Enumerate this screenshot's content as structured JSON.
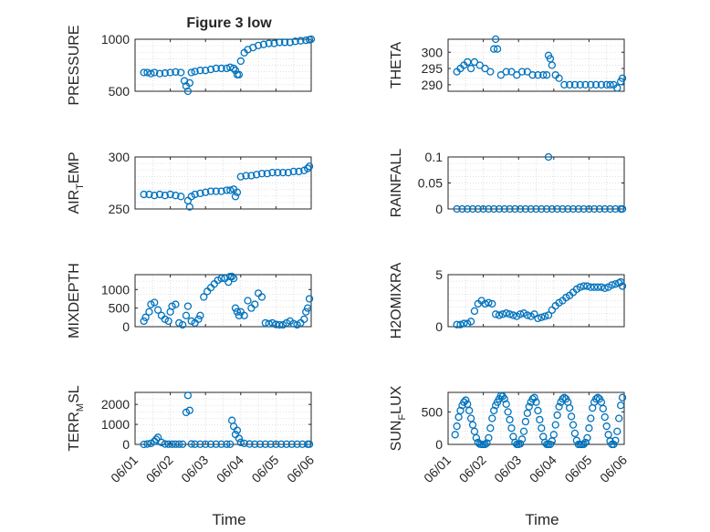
{
  "figure": {
    "title": "Figure 3 low",
    "xlabel": "Time",
    "x_ticks": [
      "06/01",
      "06/02",
      "06/03",
      "06/04",
      "06/05",
      "06/06"
    ],
    "marker_color": "#0072BD",
    "grid_color": "#d9d9d9"
  },
  "chart_data": [
    {
      "type": "scatter",
      "title": "Figure 3 low",
      "ylabel": "PRESSURE",
      "ylabel_sub": "",
      "xlim": [
        0,
        5
      ],
      "xticks": [
        "06/01",
        "06/02",
        "06/03",
        "06/04",
        "06/05",
        "06/06"
      ],
      "ylim": [
        500,
        1000
      ],
      "yticks": [
        500,
        1000
      ],
      "x": [
        0.25,
        0.35,
        0.45,
        0.55,
        0.7,
        0.85,
        1.0,
        1.15,
        1.3,
        1.4,
        1.45,
        1.5,
        1.55,
        1.6,
        1.7,
        1.85,
        2.0,
        2.15,
        2.3,
        2.45,
        2.6,
        2.7,
        2.8,
        2.85,
        2.9,
        2.95,
        3.0,
        3.1,
        3.2,
        3.35,
        3.5,
        3.65,
        3.8,
        3.95,
        4.1,
        4.25,
        4.4,
        4.55,
        4.7,
        4.85,
        4.95,
        5.0
      ],
      "y": [
        680,
        680,
        670,
        680,
        670,
        675,
        680,
        685,
        680,
        600,
        550,
        500,
        580,
        680,
        690,
        700,
        700,
        710,
        720,
        720,
        720,
        730,
        720,
        700,
        660,
        660,
        790,
        870,
        900,
        920,
        940,
        950,
        960,
        960,
        970,
        970,
        970,
        980,
        985,
        990,
        995,
        1000
      ]
    },
    {
      "type": "scatter",
      "title": "",
      "ylabel": "THETA",
      "ylabel_sub": "",
      "xlim": [
        0,
        5
      ],
      "xticks": [
        "06/01",
        "06/02",
        "06/03",
        "06/04",
        "06/05",
        "06/06"
      ],
      "ylim": [
        288,
        304
      ],
      "yticks": [
        290,
        295,
        300
      ],
      "x": [
        0.25,
        0.35,
        0.45,
        0.55,
        0.65,
        0.75,
        0.9,
        1.05,
        1.2,
        1.3,
        1.35,
        1.4,
        1.5,
        1.65,
        1.8,
        1.95,
        2.1,
        2.25,
        2.4,
        2.55,
        2.7,
        2.8,
        2.85,
        2.9,
        2.95,
        3.05,
        3.15,
        3.3,
        3.45,
        3.6,
        3.75,
        3.9,
        4.05,
        4.2,
        4.35,
        4.5,
        4.6,
        4.7,
        4.8,
        4.9,
        4.95
      ],
      "y": [
        294,
        295,
        296,
        297,
        295,
        297,
        296,
        295,
        294,
        301,
        304,
        301,
        293,
        294,
        294,
        293,
        294,
        294,
        293,
        293,
        293,
        293,
        299,
        298,
        296,
        293,
        292,
        290,
        290,
        290,
        290,
        290,
        290,
        290,
        290,
        290,
        290,
        290,
        289,
        291,
        292
      ]
    },
    {
      "type": "scatter",
      "title": "",
      "ylabel": "AIR",
      "ylabel_sub": "T",
      "ylabel_post": "EMP",
      "xlim": [
        0,
        5
      ],
      "xticks": [
        "06/01",
        "06/02",
        "06/03",
        "06/04",
        "06/05",
        "06/06"
      ],
      "ylim": [
        250,
        300
      ],
      "yticks": [
        250,
        300
      ],
      "x": [
        0.25,
        0.4,
        0.55,
        0.7,
        0.85,
        1.0,
        1.15,
        1.3,
        1.5,
        1.55,
        1.6,
        1.7,
        1.85,
        2.0,
        2.15,
        2.3,
        2.45,
        2.6,
        2.7,
        2.8,
        2.85,
        2.9,
        3.0,
        3.15,
        3.3,
        3.45,
        3.6,
        3.75,
        3.9,
        4.05,
        4.2,
        4.35,
        4.5,
        4.65,
        4.8,
        4.9,
        4.95
      ],
      "y": [
        264,
        264,
        263,
        264,
        263,
        264,
        263,
        262,
        258,
        252,
        262,
        264,
        265,
        266,
        267,
        267,
        267,
        268,
        268,
        269,
        262,
        266,
        281,
        282,
        282,
        283,
        284,
        284,
        285,
        285,
        285,
        285,
        286,
        286,
        287,
        289,
        291
      ]
    },
    {
      "type": "scatter",
      "title": "",
      "ylabel": "RAINFALL",
      "ylabel_sub": "",
      "xlim": [
        0,
        5
      ],
      "xticks": [
        "06/01",
        "06/02",
        "06/03",
        "06/04",
        "06/05",
        "06/06"
      ],
      "ylim": [
        0,
        0.1
      ],
      "yticks": [
        0,
        0.05,
        0.1
      ],
      "x": [
        0.25,
        0.4,
        0.55,
        0.7,
        0.85,
        1.0,
        1.15,
        1.3,
        1.45,
        1.6,
        1.75,
        1.9,
        2.05,
        2.2,
        2.35,
        2.5,
        2.65,
        2.8,
        2.85,
        2.95,
        3.1,
        3.25,
        3.4,
        3.55,
        3.7,
        3.85,
        4.0,
        4.15,
        4.3,
        4.45,
        4.6,
        4.75,
        4.9,
        4.95
      ],
      "y": [
        0,
        0,
        0,
        0,
        0,
        0,
        0,
        0,
        0,
        0,
        0,
        0,
        0,
        0,
        0,
        0,
        0,
        0,
        0.1,
        0,
        0,
        0,
        0,
        0,
        0,
        0,
        0,
        0,
        0,
        0,
        0,
        0,
        0,
        0
      ]
    },
    {
      "type": "scatter",
      "title": "",
      "ylabel": "MIXDEPTH",
      "ylabel_sub": "",
      "xlim": [
        0,
        5
      ],
      "xticks": [
        "06/01",
        "06/02",
        "06/03",
        "06/04",
        "06/05",
        "06/06"
      ],
      "ylim": [
        0,
        1400
      ],
      "yticks": [
        0,
        500,
        1000
      ],
      "x": [
        0.25,
        0.3,
        0.4,
        0.45,
        0.55,
        0.65,
        0.75,
        0.85,
        0.95,
        1.0,
        1.05,
        1.15,
        1.25,
        1.35,
        1.45,
        1.5,
        1.6,
        1.7,
        1.8,
        1.85,
        1.95,
        2.05,
        2.15,
        2.25,
        2.35,
        2.45,
        2.55,
        2.65,
        2.7,
        2.75,
        2.8,
        2.85,
        2.9,
        2.95,
        3.0,
        3.1,
        3.2,
        3.3,
        3.4,
        3.5,
        3.6,
        3.7,
        3.8,
        3.9,
        4.0,
        4.1,
        4.2,
        4.3,
        4.4,
        4.5,
        4.6,
        4.7,
        4.8,
        4.85,
        4.9,
        4.95
      ],
      "y": [
        150,
        250,
        400,
        600,
        650,
        450,
        300,
        200,
        150,
        400,
        550,
        600,
        100,
        50,
        300,
        550,
        150,
        100,
        200,
        300,
        800,
        950,
        1050,
        1150,
        1250,
        1300,
        1300,
        1200,
        1350,
        1350,
        1300,
        500,
        400,
        300,
        400,
        300,
        700,
        500,
        600,
        900,
        800,
        100,
        80,
        100,
        60,
        50,
        50,
        100,
        150,
        80,
        50,
        100,
        200,
        400,
        500,
        750
      ]
    },
    {
      "type": "scatter",
      "title": "",
      "ylabel": "H2OMIXRA",
      "ylabel_sub": "",
      "xlim": [
        0,
        5
      ],
      "xticks": [
        "06/01",
        "06/02",
        "06/03",
        "06/04",
        "06/05",
        "06/06"
      ],
      "ylim": [
        0,
        5
      ],
      "yticks": [
        0,
        5
      ],
      "x": [
        0.25,
        0.35,
        0.45,
        0.55,
        0.65,
        0.75,
        0.85,
        0.95,
        1.05,
        1.15,
        1.25,
        1.35,
        1.45,
        1.55,
        1.65,
        1.75,
        1.85,
        1.95,
        2.05,
        2.15,
        2.25,
        2.35,
        2.45,
        2.55,
        2.65,
        2.75,
        2.85,
        2.95,
        3.05,
        3.15,
        3.25,
        3.35,
        3.45,
        3.55,
        3.65,
        3.75,
        3.85,
        3.95,
        4.05,
        4.15,
        4.25,
        4.35,
        4.45,
        4.55,
        4.65,
        4.75,
        4.85,
        4.9,
        4.95
      ],
      "y": [
        0.2,
        0.2,
        0.3,
        0.3,
        0.5,
        1.5,
        2.2,
        2.5,
        2.2,
        2.3,
        2.2,
        1.2,
        1.1,
        1.2,
        1.3,
        1.2,
        1.1,
        1.0,
        1.2,
        1.3,
        1.1,
        1.0,
        1.2,
        0.8,
        0.9,
        1.0,
        1.1,
        1.6,
        2.0,
        2.3,
        2.5,
        2.8,
        3.0,
        3.3,
        3.6,
        3.8,
        3.9,
        3.9,
        3.8,
        3.8,
        3.8,
        3.8,
        3.7,
        3.8,
        4.0,
        4.1,
        4.2,
        4.3,
        3.9
      ]
    },
    {
      "type": "scatter",
      "title": "",
      "ylabel": "TERR",
      "ylabel_sub": "M",
      "ylabel_post": "SL",
      "xlim": [
        0,
        5
      ],
      "xticks": [
        "06/01",
        "06/02",
        "06/03",
        "06/04",
        "06/05",
        "06/06"
      ],
      "ylim": [
        0,
        2600
      ],
      "yticks": [
        0,
        1000,
        2000
      ],
      "x": [
        0.25,
        0.35,
        0.45,
        0.55,
        0.6,
        0.65,
        0.75,
        0.85,
        0.95,
        1.05,
        1.15,
        1.25,
        1.35,
        1.45,
        1.5,
        1.55,
        1.6,
        1.7,
        1.85,
        2.0,
        2.15,
        2.3,
        2.45,
        2.6,
        2.7,
        2.75,
        2.8,
        2.85,
        2.9,
        2.95,
        3.0,
        3.1,
        3.25,
        3.4,
        3.55,
        3.7,
        3.85,
        4.0,
        4.15,
        4.3,
        4.45,
        4.6,
        4.75,
        4.9,
        4.95
      ],
      "y": [
        0,
        20,
        50,
        150,
        250,
        350,
        100,
        20,
        10,
        10,
        10,
        10,
        10,
        1600,
        2450,
        1700,
        20,
        10,
        10,
        10,
        10,
        10,
        10,
        10,
        10,
        1200,
        900,
        500,
        700,
        300,
        100,
        50,
        20,
        10,
        10,
        10,
        10,
        10,
        10,
        10,
        10,
        10,
        10,
        10,
        10
      ]
    },
    {
      "type": "scatter",
      "title": "",
      "ylabel": "SUN",
      "ylabel_sub": "F",
      "ylabel_post": "LUX",
      "xlim": [
        0,
        5
      ],
      "xticks": [
        "06/01",
        "06/02",
        "06/03",
        "06/04",
        "06/05",
        "06/06"
      ],
      "ylim": [
        0,
        800
      ],
      "yticks": [
        0,
        500
      ],
      "x": [
        0.2,
        0.25,
        0.3,
        0.35,
        0.4,
        0.45,
        0.5,
        0.55,
        0.6,
        0.65,
        0.7,
        0.75,
        0.8,
        0.85,
        0.9,
        0.95,
        1.0,
        1.05,
        1.1,
        1.15,
        1.2,
        1.25,
        1.3,
        1.35,
        1.4,
        1.45,
        1.5,
        1.55,
        1.6,
        1.65,
        1.7,
        1.75,
        1.8,
        1.85,
        1.9,
        1.95,
        2.0,
        2.05,
        2.1,
        2.15,
        2.2,
        2.25,
        2.3,
        2.35,
        2.4,
        2.45,
        2.5,
        2.55,
        2.6,
        2.65,
        2.7,
        2.75,
        2.8,
        2.85,
        2.9,
        2.95,
        3.0,
        3.05,
        3.1,
        3.15,
        3.2,
        3.25,
        3.3,
        3.35,
        3.4,
        3.45,
        3.5,
        3.55,
        3.6,
        3.65,
        3.7,
        3.75,
        3.8,
        3.85,
        3.9,
        3.95,
        4.0,
        4.05,
        4.1,
        4.15,
        4.2,
        4.25,
        4.3,
        4.35,
        4.4,
        4.45,
        4.5,
        4.55,
        4.6,
        4.65,
        4.7,
        4.75,
        4.8,
        4.85,
        4.9,
        4.95
      ],
      "y": [
        150,
        280,
        420,
        520,
        600,
        650,
        680,
        620,
        520,
        400,
        300,
        200,
        100,
        30,
        5,
        0,
        0,
        0,
        20,
        100,
        250,
        400,
        520,
        600,
        650,
        700,
        750,
        740,
        700,
        620,
        500,
        380,
        250,
        120,
        30,
        0,
        0,
        10,
        80,
        200,
        350,
        480,
        580,
        650,
        700,
        720,
        650,
        520,
        380,
        250,
        120,
        30,
        0,
        0,
        0,
        50,
        150,
        300,
        450,
        580,
        650,
        700,
        720,
        700,
        650,
        560,
        430,
        300,
        170,
        60,
        0,
        0,
        0,
        0,
        30,
        100,
        250,
        400,
        560,
        650,
        700,
        720,
        700,
        650,
        550,
        420,
        280,
        150,
        50,
        0,
        0,
        60,
        200,
        400,
        600,
        720
      ]
    }
  ]
}
